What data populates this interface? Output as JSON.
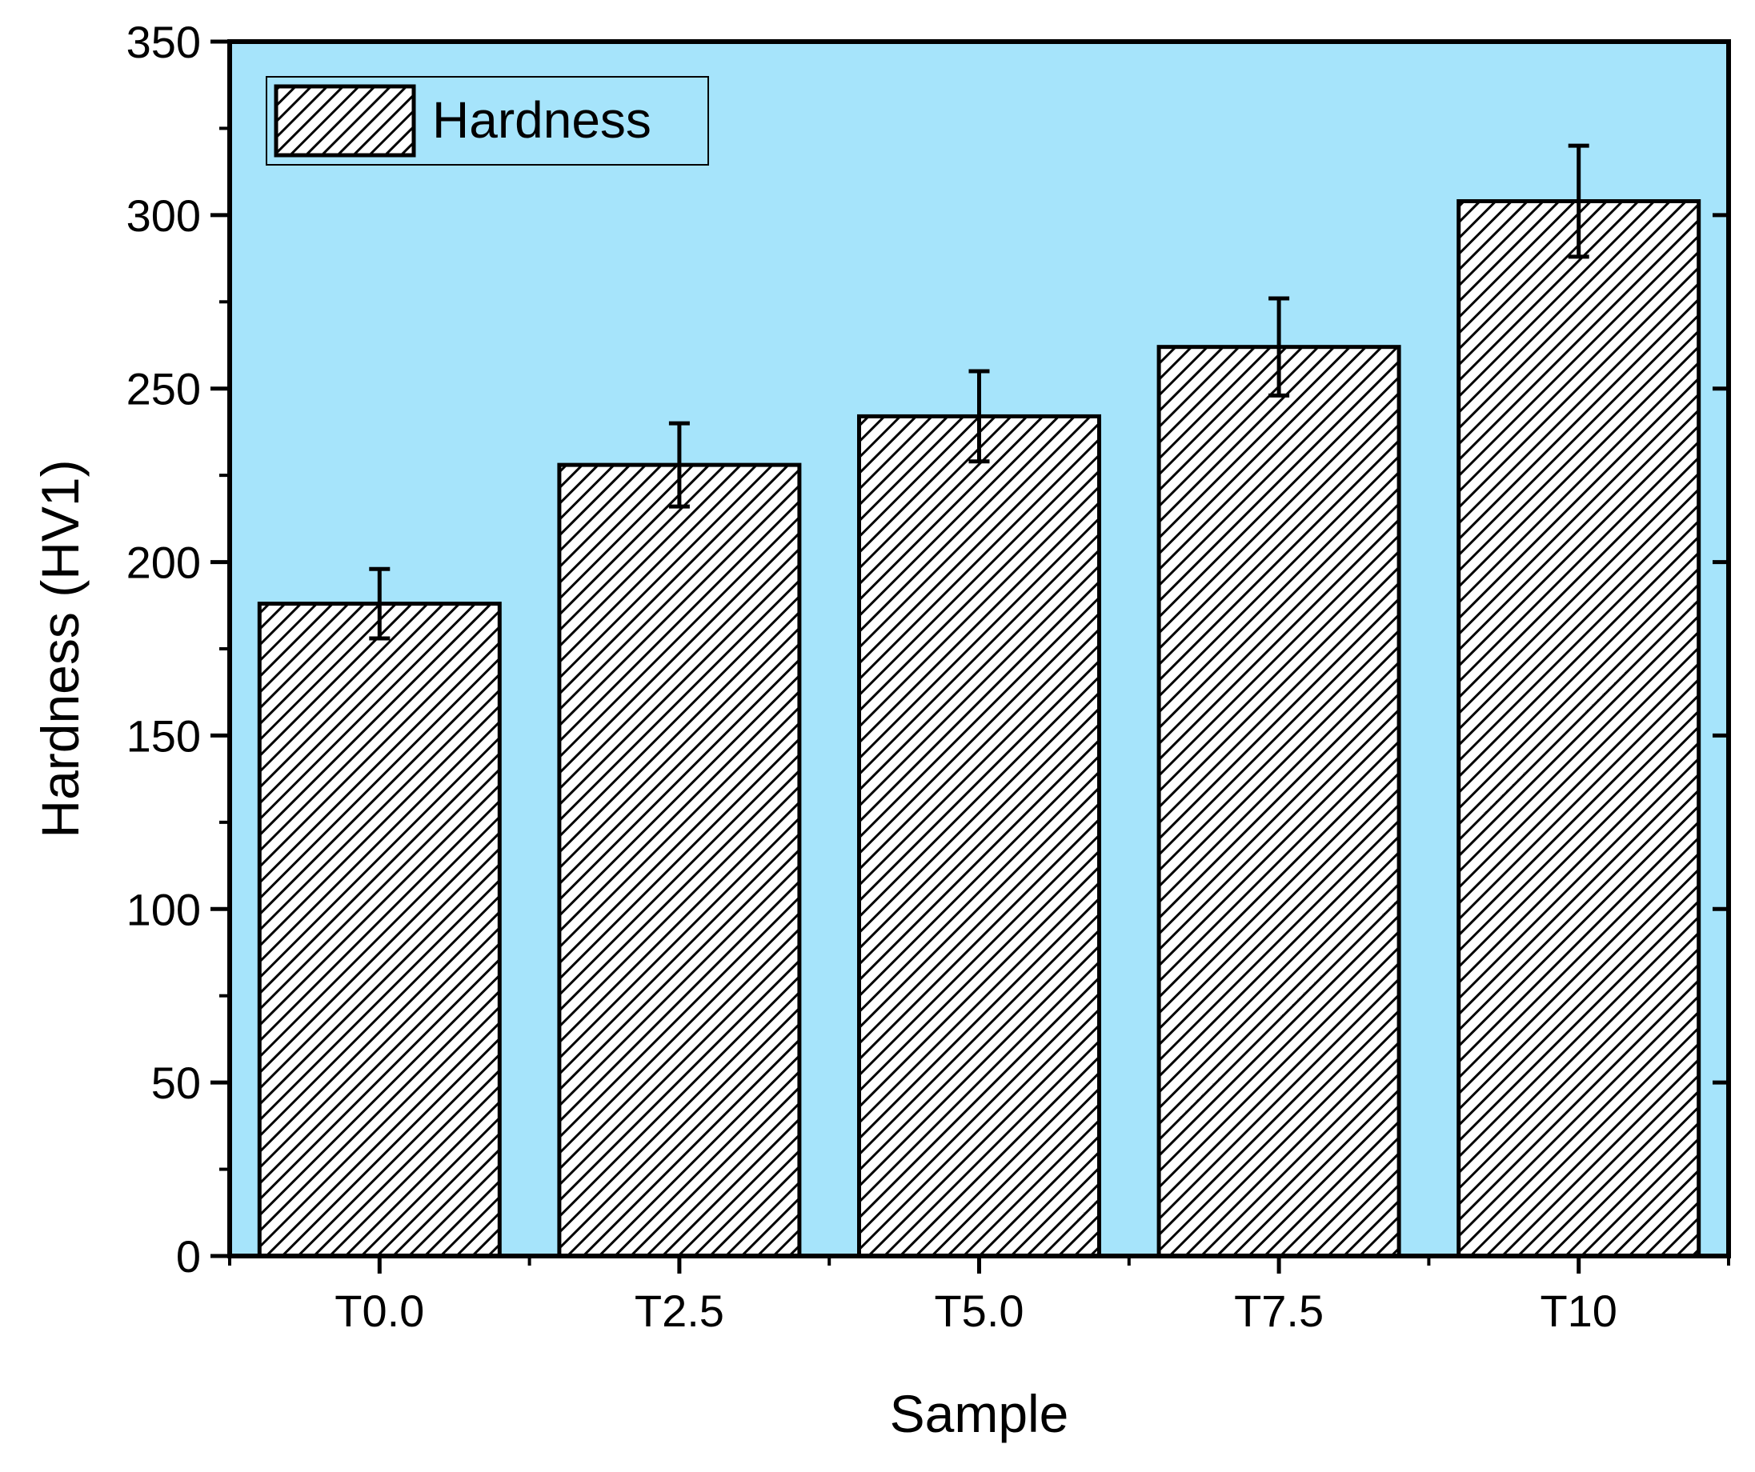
{
  "chart_data": {
    "type": "bar",
    "title": "",
    "xlabel": "Sample",
    "ylabel": "Hardness (HV1)",
    "categories": [
      "T0.0",
      "T2.5",
      "T5.0",
      "T7.5",
      "T10"
    ],
    "series": [
      {
        "name": "Hardness",
        "values": [
          188,
          228,
          242,
          262,
          304
        ],
        "errors": [
          10,
          12,
          13,
          14,
          16
        ]
      }
    ],
    "ylim": [
      0,
      350
    ],
    "yticks": [
      "0",
      "50",
      "100",
      "150",
      "200",
      "250",
      "300",
      "350"
    ],
    "legend": {
      "label": "Hardness",
      "position": "top-left"
    },
    "grid": false,
    "colors": {
      "plot_background": "#a6e4fb",
      "bar_fill": "#ffffff",
      "bar_hatch": "#000000",
      "axis": "#000000"
    }
  }
}
